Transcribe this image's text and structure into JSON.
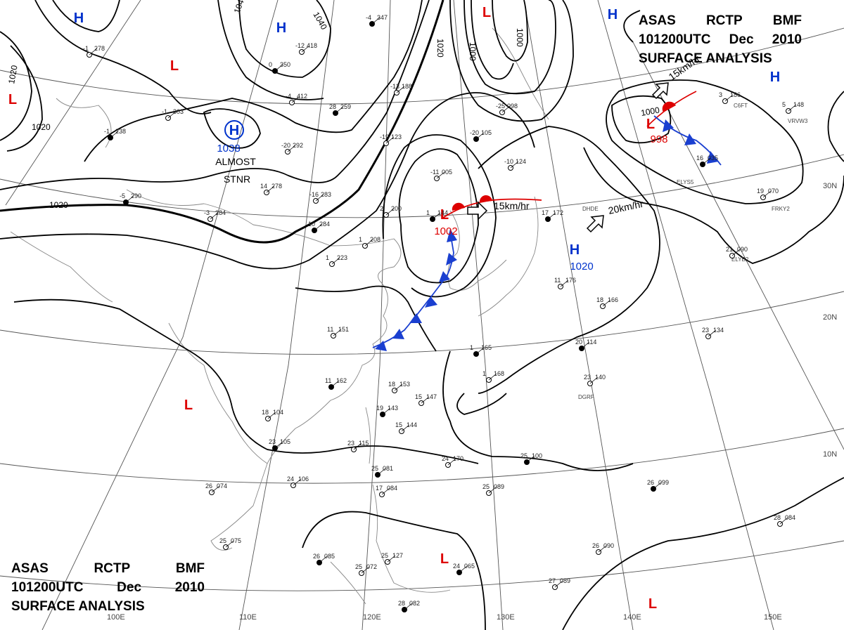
{
  "title": {
    "line1": [
      "ASAS",
      "RCTP",
      "BMF"
    ],
    "line2": [
      "101200UTC",
      "Dec",
      "2010"
    ],
    "line3": "SURFACE ANALYSIS"
  },
  "pressure_centers": [
    {
      "type": "H",
      "color": "#0033cc"
    },
    {
      "type": "H",
      "color": "#0033cc"
    },
    {
      "type": "H",
      "color": "#0033cc",
      "value": "1038"
    },
    {
      "type": "H",
      "color": "#0033cc"
    },
    {
      "type": "H",
      "color": "#0033cc"
    },
    {
      "type": "H",
      "color": "#0033cc",
      "value": "1020"
    },
    {
      "type": "L",
      "color": "#dd0000"
    },
    {
      "type": "L",
      "color": "#dd0000"
    },
    {
      "type": "L",
      "color": "#dd0000"
    },
    {
      "type": "L",
      "color": "#dd0000",
      "value": "1002"
    },
    {
      "type": "L",
      "color": "#dd0000",
      "value": "998"
    },
    {
      "type": "L",
      "color": "#dd0000"
    },
    {
      "type": "L",
      "color": "#dd0000"
    },
    {
      "type": "L",
      "color": "#dd0000"
    }
  ],
  "isobar_labels": [
    "1020",
    "1020",
    "1040",
    "1040",
    "1020",
    "1000",
    "1000",
    "1020",
    "1000"
  ],
  "annotations": {
    "stationary_line1": "ALMOST",
    "stationary_line2": "STNR",
    "motion1": "15km/hr",
    "motion2": "20km/hr",
    "motion3": "15km/hr"
  },
  "grid_labels": {
    "lon": [
      "110E",
      "120E",
      "130E",
      "140E",
      "150E",
      "100E"
    ],
    "lat": [
      "30N",
      "20N",
      "10N"
    ]
  },
  "ship_codes": [
    "DHDE",
    "ELYB2",
    "FRKY2",
    "VRVW3",
    "C6FT",
    "DGRF",
    "ELYS5"
  ],
  "stations": [
    {
      "t": "-4",
      "p": "347"
    },
    {
      "t": "-1",
      "p": "278"
    },
    {
      "t": "-12",
      "p": "418"
    },
    {
      "t": "0",
      "p": "350"
    },
    {
      "t": "-4",
      "p": "412"
    },
    {
      "t": "-1",
      "p": "303"
    },
    {
      "t": "-1",
      "p": "238"
    },
    {
      "t": "-20",
      "p": "292"
    },
    {
      "t": "-16",
      "p": "283"
    },
    {
      "t": "-5",
      "p": "290"
    },
    {
      "t": "-3",
      "p": "284"
    },
    {
      "t": "14",
      "p": "278"
    },
    {
      "t": "10",
      "p": "284"
    },
    {
      "t": "1",
      "p": "223"
    },
    {
      "t": "1",
      "p": "208"
    },
    {
      "t": "28",
      "p": "259"
    },
    {
      "t": "-13",
      "p": "188"
    },
    {
      "t": "-25",
      "p": "098"
    },
    {
      "t": "-20",
      "p": "105"
    },
    {
      "t": "-11",
      "p": "005"
    },
    {
      "t": "-10",
      "p": "124"
    },
    {
      "t": "1",
      "p": "144"
    },
    {
      "t": "2",
      "p": "200"
    },
    {
      "t": "-19",
      "p": "123"
    },
    {
      "t": "16",
      "p": "035"
    },
    {
      "t": "19",
      "p": "070"
    },
    {
      "t": "21",
      "p": "090"
    },
    {
      "t": "17",
      "p": "172"
    },
    {
      "t": "11",
      "p": "176"
    },
    {
      "t": "18",
      "p": "166"
    },
    {
      "t": "20",
      "p": "114"
    },
    {
      "t": "23",
      "p": "134"
    },
    {
      "t": "23",
      "p": "140"
    },
    {
      "t": "1",
      "p": "165"
    },
    {
      "t": "1",
      "p": "168"
    },
    {
      "t": "11",
      "p": "151"
    },
    {
      "t": "11",
      "p": "162"
    },
    {
      "t": "18",
      "p": "153"
    },
    {
      "t": "15",
      "p": "147"
    },
    {
      "t": "19",
      "p": "143"
    },
    {
      "t": "15",
      "p": "144"
    },
    {
      "t": "18",
      "p": "104"
    },
    {
      "t": "23",
      "p": "105"
    },
    {
      "t": "23",
      "p": "115"
    },
    {
      "t": "24",
      "p": "170"
    },
    {
      "t": "25",
      "p": "100"
    },
    {
      "t": "24",
      "p": "106"
    },
    {
      "t": "26",
      "p": "074"
    },
    {
      "t": "25",
      "p": "081"
    },
    {
      "t": "17",
      "p": "084"
    },
    {
      "t": "25",
      "p": "089"
    },
    {
      "t": "26",
      "p": "099"
    },
    {
      "t": "28",
      "p": "084"
    },
    {
      "t": "25",
      "p": "075"
    },
    {
      "t": "26",
      "p": "085"
    },
    {
      "t": "25",
      "p": "072"
    },
    {
      "t": "25",
      "p": "127"
    },
    {
      "t": "24",
      "p": "065"
    },
    {
      "t": "26",
      "p": "090"
    },
    {
      "t": "27",
      "p": "089"
    },
    {
      "t": "28",
      "p": "082"
    },
    {
      "t": "5",
      "p": "148"
    },
    {
      "t": "3",
      "p": "186"
    }
  ]
}
